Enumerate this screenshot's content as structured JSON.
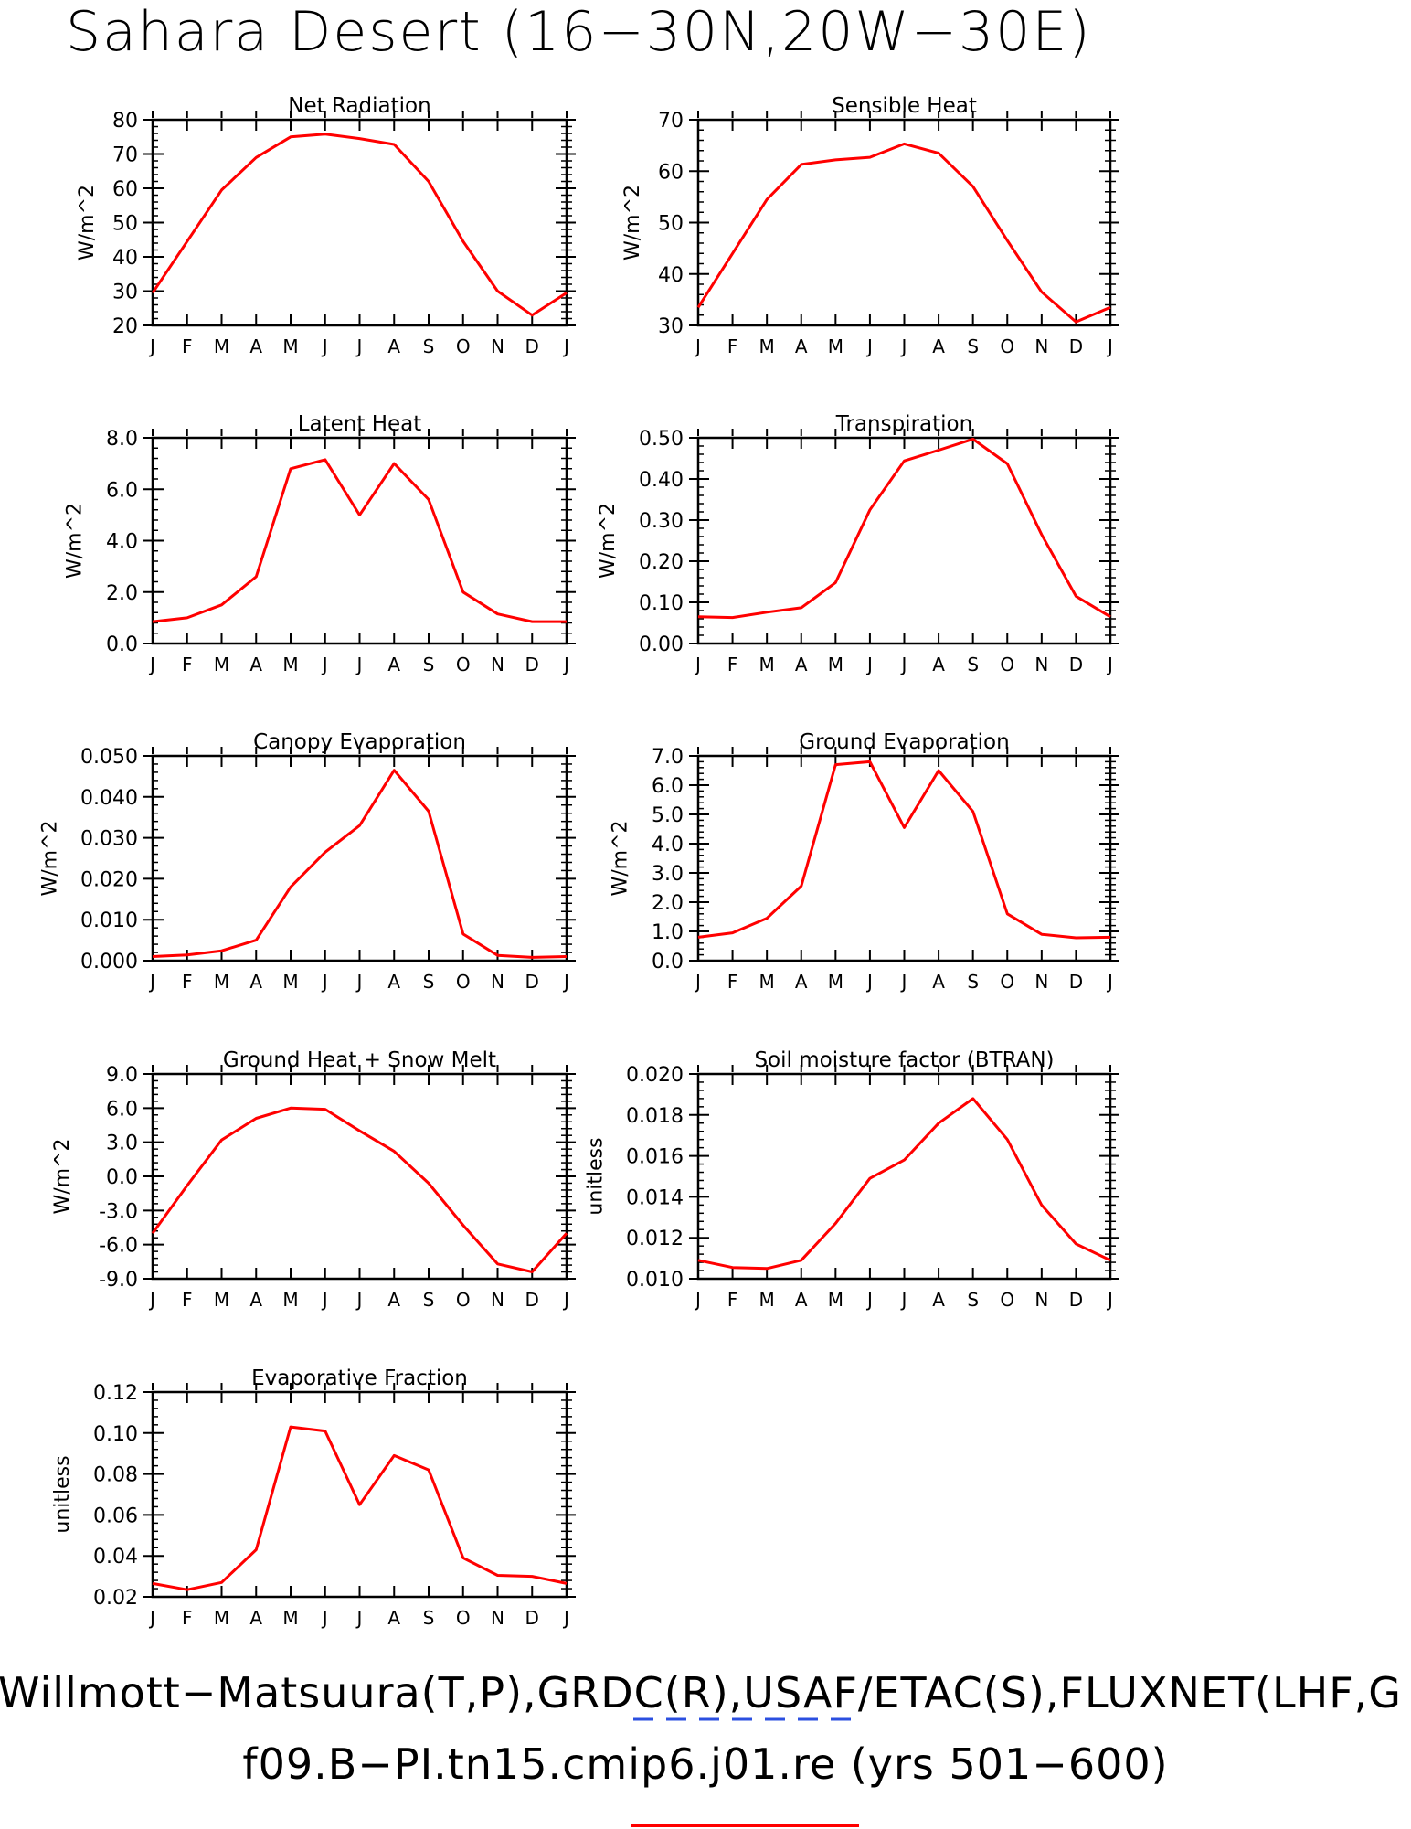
{
  "figure": {
    "title": "Sahara Desert (16−30N,20W−30E)",
    "footer_obs": "Willmott−Matsuura(T,P),GRDC(R),USAF/ETAC(S),FLUXNET(LHF,G",
    "footer_case": "f09.B−PI.tn15.cmip6.j01.re (yrs 501−600)",
    "line_color": "#ff0000",
    "obs_legend_color": "#2b4fe0",
    "case_legend_color": "#ff0000"
  },
  "chart_data": [
    {
      "type": "line",
      "title": "Net Radiation",
      "ylabel": "W/m^2",
      "categories": [
        "J",
        "F",
        "M",
        "A",
        "M",
        "J",
        "J",
        "A",
        "S",
        "O",
        "N",
        "D",
        "J"
      ],
      "values": [
        29.5,
        44.5,
        59.5,
        69.0,
        75.0,
        75.8,
        74.5,
        72.8,
        62.0,
        44.5,
        30.0,
        23.0,
        29.5
      ],
      "ylim": [
        20,
        80
      ],
      "yticks": [
        20,
        30,
        40,
        50,
        60,
        70,
        80
      ],
      "ytick_labels": [
        "20",
        "30",
        "40",
        "50",
        "60",
        "70",
        "80"
      ]
    },
    {
      "type": "line",
      "title": "Sensible Heat",
      "ylabel": "W/m^2",
      "categories": [
        "J",
        "F",
        "M",
        "A",
        "M",
        "J",
        "J",
        "A",
        "S",
        "O",
        "N",
        "D",
        "J"
      ],
      "values": [
        33.5,
        44.0,
        54.5,
        61.3,
        62.2,
        62.7,
        65.3,
        63.5,
        57.0,
        46.5,
        36.5,
        30.7,
        33.5
      ],
      "ylim": [
        30,
        70
      ],
      "yticks": [
        30,
        40,
        50,
        60,
        70
      ],
      "ytick_labels": [
        "30",
        "40",
        "50",
        "60",
        "70"
      ]
    },
    {
      "type": "line",
      "title": "Latent Heat",
      "ylabel": "W/m^2",
      "categories": [
        "J",
        "F",
        "M",
        "A",
        "M",
        "J",
        "J",
        "A",
        "S",
        "O",
        "N",
        "D",
        "J"
      ],
      "values": [
        0.85,
        1.0,
        1.5,
        2.6,
        6.8,
        7.15,
        5.0,
        7.0,
        5.6,
        2.0,
        1.15,
        0.85,
        0.85
      ],
      "ylim": [
        0,
        8
      ],
      "yticks": [
        0,
        2,
        4,
        6,
        8
      ],
      "ytick_labels": [
        "0.0",
        "2.0",
        "4.0",
        "6.0",
        "8.0"
      ]
    },
    {
      "type": "line",
      "title": "Transpiration",
      "ylabel": "W/m^2",
      "categories": [
        "J",
        "F",
        "M",
        "A",
        "M",
        "J",
        "J",
        "A",
        "S",
        "O",
        "N",
        "D",
        "J"
      ],
      "values": [
        0.065,
        0.063,
        0.076,
        0.087,
        0.148,
        0.325,
        0.444,
        0.47,
        0.497,
        0.437,
        0.265,
        0.115,
        0.065
      ],
      "ylim": [
        0,
        0.5
      ],
      "yticks": [
        0,
        0.1,
        0.2,
        0.3,
        0.4,
        0.5
      ],
      "ytick_labels": [
        "0.00",
        "0.10",
        "0.20",
        "0.30",
        "0.40",
        "0.50"
      ]
    },
    {
      "type": "line",
      "title": "Canopy Evaporation",
      "ylabel": "W/m^2",
      "categories": [
        "J",
        "F",
        "M",
        "A",
        "M",
        "J",
        "J",
        "A",
        "S",
        "O",
        "N",
        "D",
        "J"
      ],
      "values": [
        0.001,
        0.0014,
        0.0024,
        0.005,
        0.018,
        0.0265,
        0.033,
        0.0465,
        0.0365,
        0.0065,
        0.0013,
        0.0008,
        0.001
      ],
      "ylim": [
        0,
        0.05
      ],
      "yticks": [
        0,
        0.01,
        0.02,
        0.03,
        0.04,
        0.05
      ],
      "ytick_labels": [
        "0.000",
        "0.010",
        "0.020",
        "0.030",
        "0.040",
        "0.050"
      ]
    },
    {
      "type": "line",
      "title": "Ground Evaporation",
      "ylabel": "W/m^2",
      "categories": [
        "J",
        "F",
        "M",
        "A",
        "M",
        "J",
        "J",
        "A",
        "S",
        "O",
        "N",
        "D",
        "J"
      ],
      "values": [
        0.8,
        0.95,
        1.45,
        2.55,
        6.7,
        6.8,
        4.55,
        6.5,
        5.1,
        1.6,
        0.9,
        0.78,
        0.8
      ],
      "ylim": [
        0,
        7
      ],
      "yticks": [
        0,
        1,
        2,
        3,
        4,
        5,
        6,
        7
      ],
      "ytick_labels": [
        "0.0",
        "1.0",
        "2.0",
        "3.0",
        "4.0",
        "5.0",
        "6.0",
        "7.0"
      ]
    },
    {
      "type": "line",
      "title": "Ground Heat + Snow Melt",
      "ylabel": "W/m^2",
      "categories": [
        "J",
        "F",
        "M",
        "A",
        "M",
        "J",
        "J",
        "A",
        "S",
        "O",
        "N",
        "D",
        "J"
      ],
      "values": [
        -5.0,
        -0.8,
        3.2,
        5.1,
        6.0,
        5.9,
        4.0,
        2.2,
        -0.6,
        -4.3,
        -7.7,
        -8.4,
        -5.0
      ],
      "ylim": [
        -9,
        9
      ],
      "yticks": [
        -9,
        -6,
        -3,
        0,
        3,
        6,
        9
      ],
      "ytick_labels": [
        "-9.0",
        "-6.0",
        "-3.0",
        "0.0",
        "3.0",
        "6.0",
        "9.0"
      ]
    },
    {
      "type": "line",
      "title": "Soil moisture factor (BTRAN)",
      "ylabel": "unitless",
      "categories": [
        "J",
        "F",
        "M",
        "A",
        "M",
        "J",
        "J",
        "A",
        "S",
        "O",
        "N",
        "D",
        "J"
      ],
      "values": [
        0.0109,
        0.01055,
        0.0105,
        0.0109,
        0.0127,
        0.0149,
        0.0158,
        0.0176,
        0.0188,
        0.0168,
        0.0136,
        0.0117,
        0.0109
      ],
      "ylim": [
        0.01,
        0.02
      ],
      "yticks": [
        0.01,
        0.012,
        0.014,
        0.016,
        0.018,
        0.02
      ],
      "ytick_labels": [
        "0.010",
        "0.012",
        "0.014",
        "0.016",
        "0.018",
        "0.020"
      ]
    },
    {
      "type": "line",
      "title": "Evaporative Fraction",
      "ylabel": "unitless",
      "categories": [
        "J",
        "F",
        "M",
        "A",
        "M",
        "J",
        "J",
        "A",
        "S",
        "O",
        "N",
        "D",
        "J"
      ],
      "values": [
        0.0265,
        0.0235,
        0.027,
        0.043,
        0.103,
        0.101,
        0.065,
        0.089,
        0.082,
        0.039,
        0.0305,
        0.03,
        0.0265
      ],
      "ylim": [
        0.02,
        0.12
      ],
      "yticks": [
        0.02,
        0.04,
        0.06,
        0.08,
        0.1,
        0.12
      ],
      "ytick_labels": [
        "0.02",
        "0.04",
        "0.06",
        "0.08",
        "0.10",
        "0.12"
      ]
    }
  ]
}
